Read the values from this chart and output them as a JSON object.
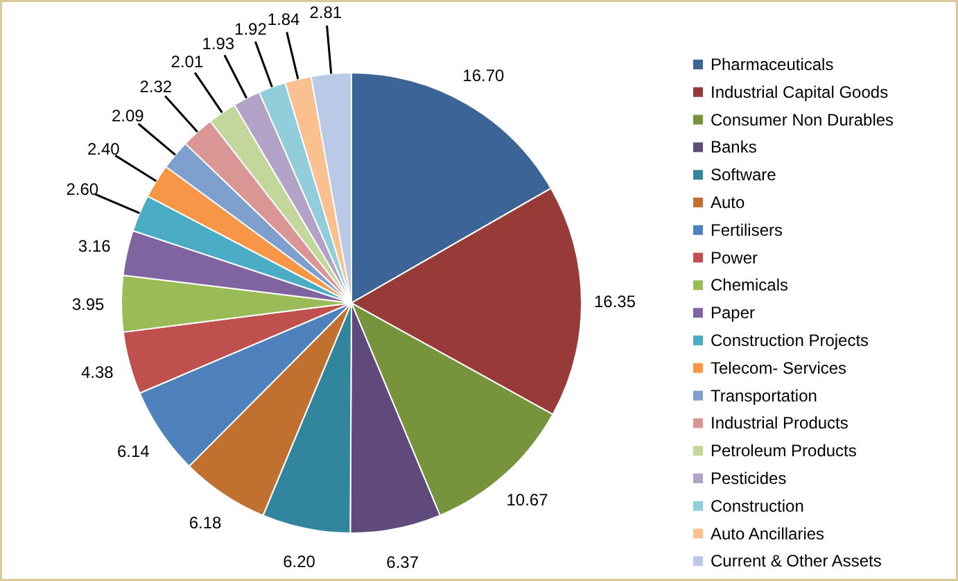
{
  "chart_data": {
    "type": "pie",
    "categories": [
      "Pharmaceuticals",
      "Industrial Capital  Goods",
      "Consumer Non Durables",
      "Banks",
      "Software",
      "Auto",
      "Fertilisers",
      "Power",
      "Chemicals",
      "Paper",
      "Construction Projects",
      "Telecom- Services",
      "Transportation",
      "Industrial Products",
      "Petroleum Products",
      "Pesticides",
      "Construction",
      "Auto Ancillaries",
      "Current & Other Assets"
    ],
    "values": [
      16.7,
      16.35,
      10.67,
      6.37,
      6.2,
      6.18,
      6.14,
      4.38,
      3.95,
      3.16,
      2.6,
      2.4,
      2.09,
      2.32,
      2.01,
      1.93,
      1.92,
      1.84,
      2.81
    ],
    "colors": [
      "#3c6496",
      "#983a37",
      "#77933c",
      "#604a7b",
      "#31859c",
      "#c0702f",
      "#4f81bd",
      "#c0504d",
      "#9bbb59",
      "#8064a2",
      "#4bacc6",
      "#f79646",
      "#7f9fcf",
      "#d99694",
      "#c3d69b",
      "#b3a2c7",
      "#92cddc",
      "#fac090",
      "#b9c9e6"
    ],
    "value_labels": [
      "16.70",
      "16.35",
      "10.67",
      "6.37",
      "6.20",
      "6.18",
      "6.14",
      "4.38",
      "3.95",
      "3.16",
      "2.60",
      "2.40",
      "2.09",
      "2.32",
      "2.01",
      "1.93",
      "1.92",
      "1.84",
      "2.81"
    ],
    "legend": "right"
  }
}
